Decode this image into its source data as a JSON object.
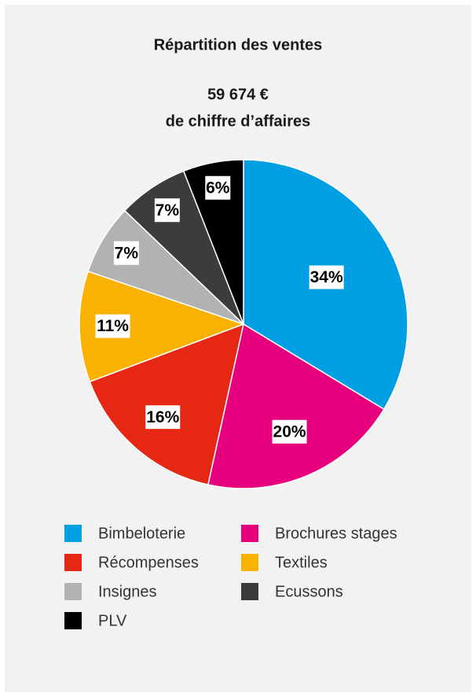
{
  "chart_data": {
    "type": "pie",
    "title": "Répartition des ventes",
    "subtitle": [
      "59 674 €",
      "de chiffre d’affaires"
    ],
    "categories": [
      "Bimbeloterie",
      "Brochures stages",
      "Récompenses",
      "Textiles",
      "Insignes",
      "Ecussons",
      "PLV"
    ],
    "values": [
      34,
      20,
      16,
      11,
      7,
      7,
      6
    ],
    "value_labels": [
      "34%",
      "20%",
      "16%",
      "11%",
      "7%",
      "7%",
      "6%"
    ],
    "colors": [
      "#009fe3",
      "#e6007e",
      "#e52713",
      "#f9b200",
      "#b2b2b2",
      "#3c3c3b",
      "#000000"
    ],
    "legend": "bottom"
  }
}
